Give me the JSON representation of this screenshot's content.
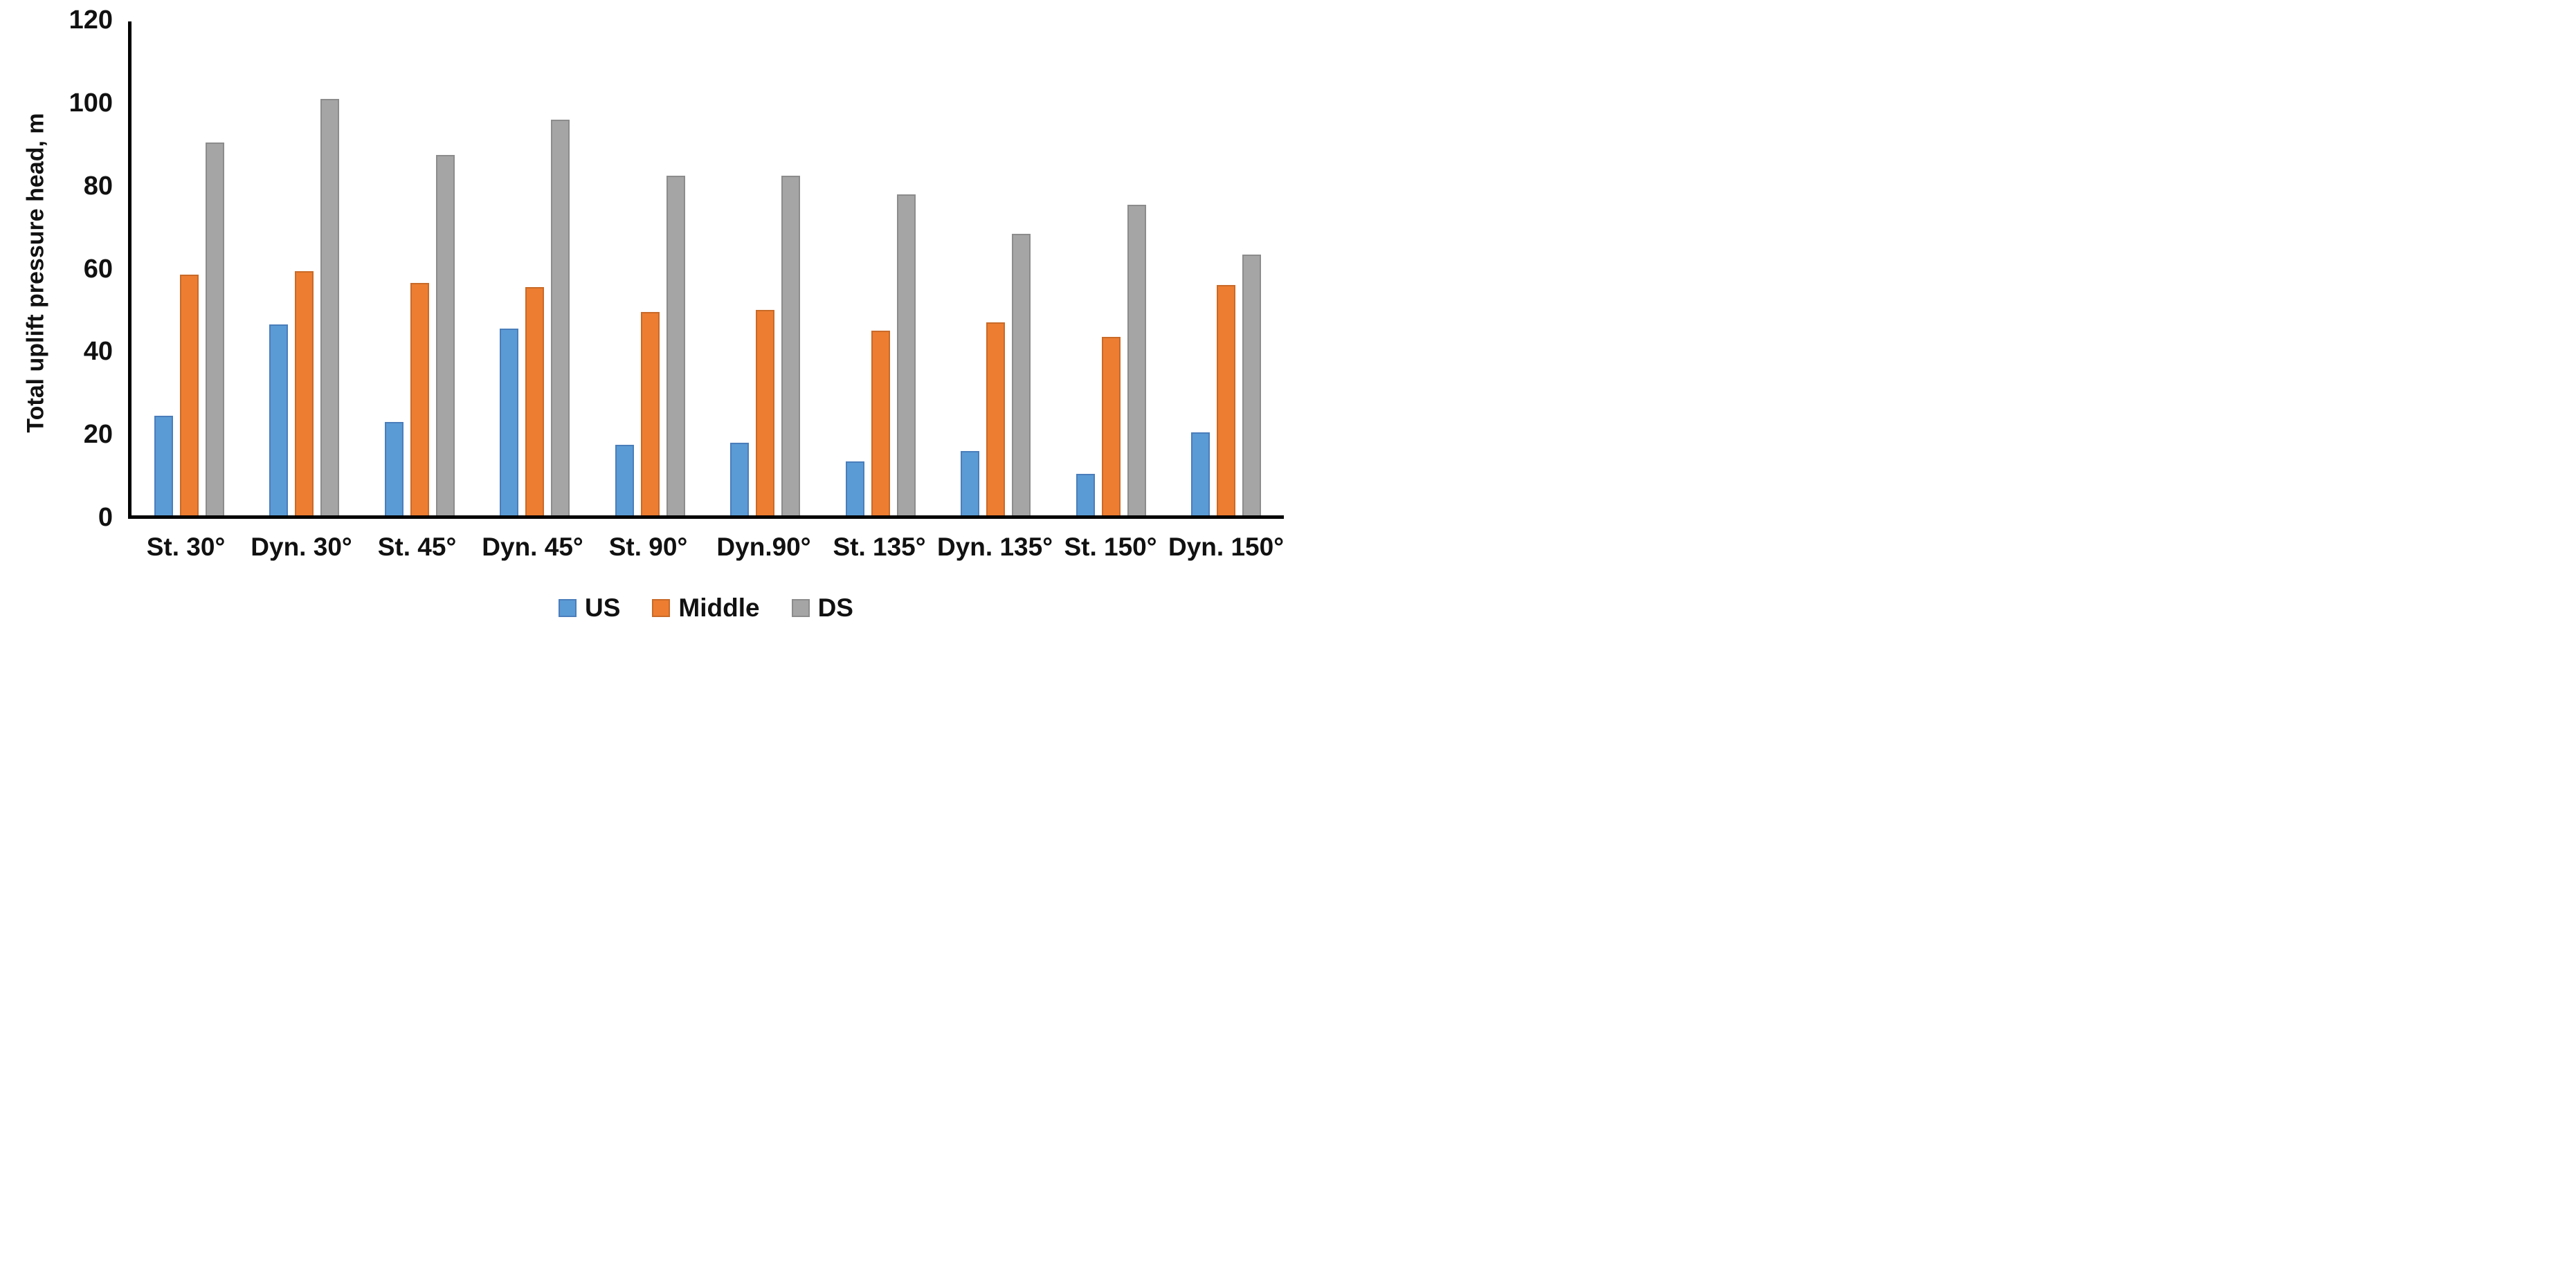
{
  "chart_data": {
    "type": "bar",
    "title": "",
    "xlabel": "",
    "ylabel": "Total uplift pressure head, m",
    "ylim": [
      0,
      120
    ],
    "yticks": [
      0,
      20,
      40,
      60,
      80,
      100,
      120
    ],
    "grid": false,
    "legend_position": "bottom",
    "categories": [
      "St. 30°",
      "Dyn. 30°",
      "St. 45°",
      "Dyn. 45°",
      "St. 90°",
      "Dyn.90°",
      "St. 135°",
      "Dyn. 135°",
      "St. 150°",
      "Dyn. 150°"
    ],
    "series": [
      {
        "name": "US",
        "color": "#5B9BD5",
        "edge_color": "#4A7EBB",
        "values": [
          24,
          46,
          22.5,
          45,
          17,
          17.5,
          13,
          15.5,
          10,
          20
        ]
      },
      {
        "name": "Middle",
        "color": "#ED7D31",
        "edge_color": "#C96A28",
        "values": [
          58,
          59,
          56,
          55,
          49,
          49.5,
          44.5,
          46.5,
          43,
          55.5
        ]
      },
      {
        "name": "DS",
        "color": "#A5A5A5",
        "edge_color": "#8C8C8C",
        "values": [
          90,
          100.5,
          87,
          95.5,
          82,
          82,
          77.5,
          68,
          75,
          63
        ]
      }
    ],
    "axis_color": "#000000",
    "text_color": "#111111"
  }
}
